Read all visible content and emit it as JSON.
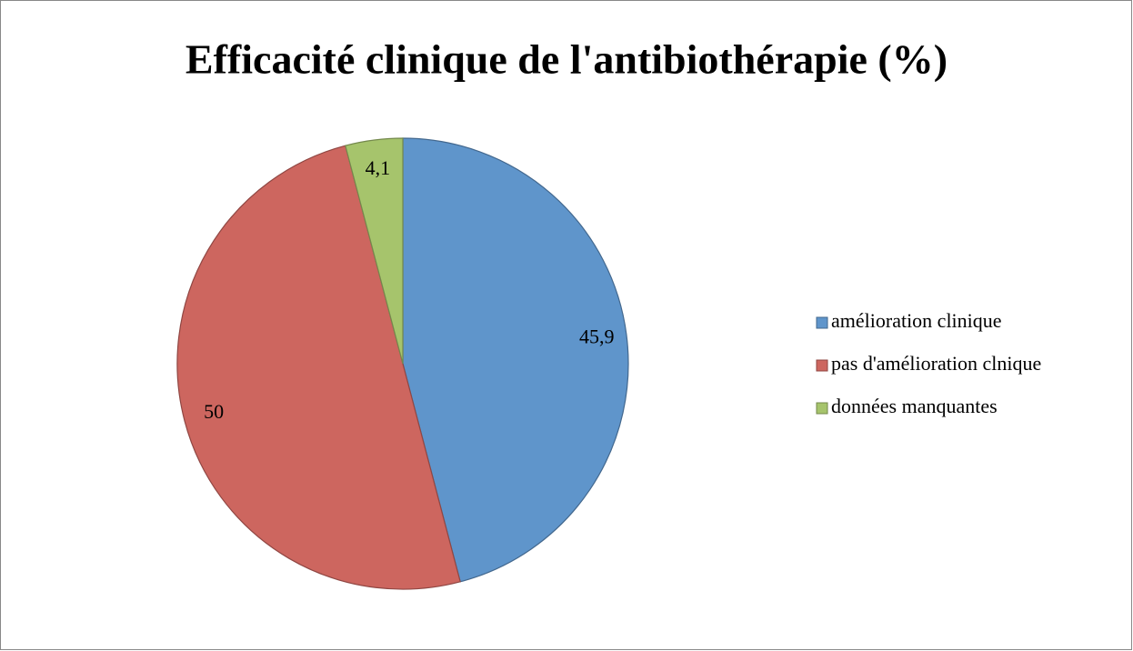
{
  "chart_data": {
    "type": "pie",
    "title": "Efficacité clinique de l'antibiothérapie (%)",
    "categories": [
      "amélioration clinique",
      "pas d'amélioration clnique",
      "données manquantes"
    ],
    "values": [
      45.9,
      50,
      4.1
    ],
    "value_labels": [
      "45,9",
      "50",
      "4,1"
    ],
    "colors": [
      "#5f95cb",
      "#cd665f",
      "#a6c46c"
    ],
    "legend": "right"
  }
}
